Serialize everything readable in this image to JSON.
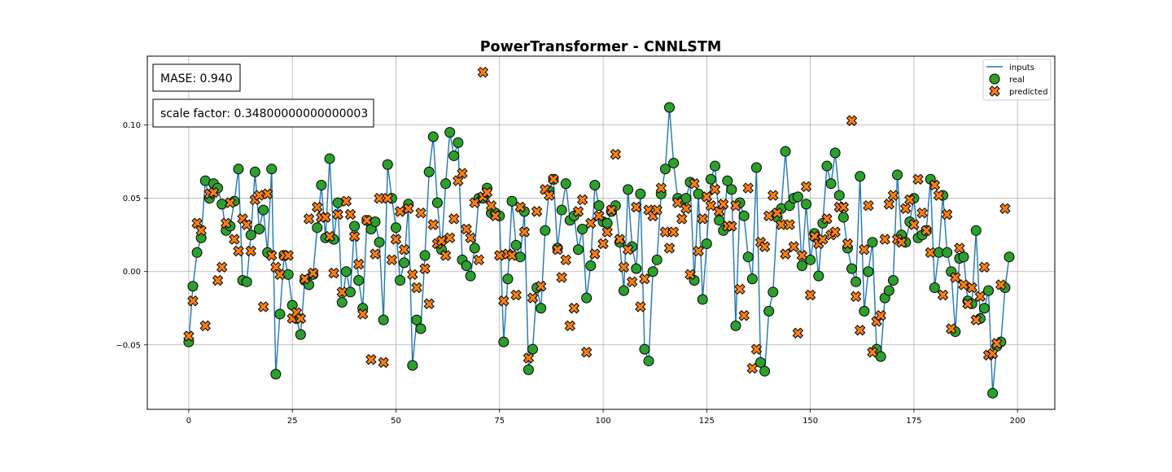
{
  "chart_data": {
    "type": "scatter",
    "title": "PowerTransformer - CNNLSTM",
    "xlabel": "",
    "ylabel": "",
    "xlim": [
      -10,
      209
    ],
    "ylim": [
      -0.094,
      0.147
    ],
    "grid": true,
    "legend_placement": "top-right",
    "x_ticks": [
      0,
      25,
      50,
      75,
      100,
      125,
      150,
      175,
      200
    ],
    "x_tick_labels": [
      "0",
      "25",
      "50",
      "75",
      "100",
      "125",
      "150",
      "175",
      "200"
    ],
    "y_ticks": [
      -0.05,
      0,
      0.05,
      0.1
    ],
    "y_tick_labels": [
      "−0.05",
      "0.00",
      "0.05",
      "0.10"
    ],
    "annotations": [
      "MASE: 0.940",
      "scale factor: 0.34800000000000003"
    ],
    "series": [
      {
        "name": "inputs",
        "kind": "line",
        "color": "#1f77b4",
        "values": [
          -0.048,
          -0.01,
          0.013,
          0.023,
          0.062,
          0.05,
          0.06,
          0.057,
          0.046,
          0.028,
          0.031,
          0.048,
          0.07,
          -0.006,
          -0.007,
          0.025,
          0.068,
          0.029,
          0.042,
          0.013,
          0.07,
          -0.07,
          -0.029,
          0.011,
          -0.002,
          -0.023,
          -0.032,
          -0.043,
          -0.006,
          -0.009,
          -0.002,
          0.03,
          0.059,
          0.023,
          0.077,
          0.022,
          0.047,
          -0.021,
          0.0,
          -0.014,
          0.031,
          -0.006,
          -0.025,
          0.035,
          0.029,
          0.034,
          0.02,
          -0.033,
          0.073,
          0.05,
          0.03,
          -0.006,
          0.006,
          0.046,
          -0.064,
          -0.033,
          -0.039,
          0.011,
          0.068,
          0.092,
          0.047,
          0.015,
          0.06,
          0.095,
          0.079,
          0.088,
          0.008,
          0.004,
          -0.003,
          0.016,
          0.05,
          0.05,
          0.057,
          0.04,
          0.04,
          0.038,
          -0.048,
          -0.005,
          0.048,
          0.018,
          0.01,
          0.041,
          -0.067,
          -0.053,
          -0.011,
          -0.025,
          0.028,
          0.055,
          0.063,
          0.016,
          0.042,
          0.06,
          0.035,
          0.038,
          0.015,
          0.029,
          -0.018,
          0.004,
          0.059,
          0.045,
          0.034,
          0.033,
          0.041,
          0.045,
          0.02,
          -0.013,
          0.056,
          0.017,
          0.002,
          0.053,
          -0.053,
          -0.061,
          0.0,
          0.008,
          0.053,
          0.07,
          0.112,
          0.074,
          0.05,
          0.048,
          0.05,
          0.061,
          -0.006,
          0.053,
          -0.019,
          0.019,
          0.063,
          0.072,
          0.035,
          0.028,
          0.062,
          0.056,
          -0.037,
          0.047,
          0.038,
          0.01,
          -0.005,
          0.071,
          -0.062,
          -0.068,
          -0.027,
          -0.014,
          0.037,
          0.043,
          0.082,
          0.045,
          0.05,
          0.051,
          0.004,
          0.046,
          0.008,
          0.026,
          -0.003,
          0.033,
          0.072,
          0.06,
          0.081,
          0.052,
          0.037,
          0.016,
          0.002,
          -0.007,
          0.065,
          -0.027,
          0.0,
          0.02,
          -0.053,
          -0.058,
          -0.018,
          -0.013,
          -0.006,
          0.066,
          0.025,
          0.02,
          0.034,
          0.05,
          0.023,
          0.025,
          0.028,
          0.063,
          -0.011,
          0.013,
          0.052,
          0.013,
          0.0,
          -0.041,
          0.009,
          0.01,
          -0.02,
          -0.022,
          0.028,
          -0.032,
          -0.025,
          -0.013,
          -0.083,
          -0.051,
          -0.048,
          -0.011,
          0.01
        ]
      },
      {
        "name": "real",
        "kind": "marker-circle",
        "color": "#2ca02c",
        "values": [
          -0.048,
          -0.01,
          0.013,
          0.023,
          0.062,
          0.05,
          0.06,
          0.057,
          0.046,
          0.028,
          0.031,
          0.048,
          0.07,
          -0.006,
          -0.007,
          0.025,
          0.068,
          0.029,
          0.042,
          0.013,
          0.07,
          -0.07,
          -0.029,
          0.011,
          -0.002,
          -0.023,
          -0.032,
          -0.043,
          -0.006,
          -0.009,
          -0.002,
          0.03,
          0.059,
          0.023,
          0.077,
          0.022,
          0.047,
          -0.021,
          0.0,
          -0.014,
          0.031,
          -0.006,
          -0.025,
          0.035,
          0.029,
          0.034,
          0.02,
          -0.033,
          0.073,
          0.05,
          0.03,
          -0.006,
          0.006,
          0.046,
          -0.064,
          -0.033,
          -0.039,
          0.011,
          0.068,
          0.092,
          0.047,
          0.015,
          0.06,
          0.095,
          0.079,
          0.088,
          0.008,
          0.004,
          -0.003,
          0.016,
          0.05,
          0.05,
          0.057,
          0.04,
          0.04,
          0.038,
          -0.048,
          -0.005,
          0.048,
          0.018,
          0.01,
          0.041,
          -0.067,
          -0.053,
          -0.011,
          -0.025,
          0.028,
          0.055,
          0.063,
          0.016,
          0.042,
          0.06,
          0.035,
          0.038,
          0.015,
          0.029,
          -0.018,
          0.004,
          0.059,
          0.045,
          0.034,
          0.033,
          0.041,
          0.045,
          0.02,
          -0.013,
          0.056,
          0.017,
          0.002,
          0.053,
          -0.053,
          -0.061,
          0.0,
          0.008,
          0.053,
          0.07,
          0.112,
          0.074,
          0.05,
          0.048,
          0.05,
          0.061,
          -0.006,
          0.053,
          -0.019,
          0.019,
          0.063,
          0.072,
          0.035,
          0.028,
          0.062,
          0.056,
          -0.037,
          0.047,
          0.038,
          0.01,
          -0.005,
          0.071,
          -0.062,
          -0.068,
          -0.027,
          -0.014,
          0.037,
          0.043,
          0.082,
          0.045,
          0.05,
          0.051,
          0.004,
          0.046,
          0.008,
          0.026,
          -0.003,
          0.033,
          0.072,
          0.06,
          0.081,
          0.052,
          0.037,
          0.016,
          0.002,
          -0.007,
          0.065,
          -0.027,
          0.0,
          0.02,
          -0.053,
          -0.058,
          -0.018,
          -0.013,
          -0.006,
          0.066,
          0.025,
          0.02,
          0.034,
          0.05,
          0.023,
          0.025,
          0.028,
          0.063,
          -0.011,
          0.013,
          0.052,
          0.013,
          0.0,
          -0.041,
          0.009,
          0.01,
          -0.02,
          -0.022,
          0.028,
          -0.032,
          -0.025,
          -0.013,
          -0.083,
          -0.051,
          -0.048,
          -0.011,
          0.01
        ]
      },
      {
        "name": "predicted",
        "kind": "marker-x",
        "color": "#ff7f0e",
        "values": [
          -0.044,
          -0.02,
          0.033,
          0.028,
          -0.037,
          0.053,
          0.054,
          -0.006,
          0.003,
          0.033,
          0.047,
          0.022,
          0.014,
          0.036,
          0.032,
          0.014,
          0.049,
          0.052,
          -0.024,
          0.053,
          0.011,
          0.003,
          -0.002,
          0.011,
          0.011,
          -0.032,
          -0.028,
          -0.032,
          -0.005,
          0.036,
          -0.001,
          0.044,
          0.037,
          0.037,
          0.024,
          -0.001,
          0.039,
          -0.014,
          0.048,
          0.039,
          0.024,
          0.005,
          -0.029,
          0.035,
          -0.06,
          0.012,
          0.05,
          -0.062,
          0.05,
          0.008,
          0.022,
          0.041,
          0.015,
          0.043,
          -0.002,
          -0.011,
          0.04,
          0.002,
          -0.022,
          0.032,
          0.019,
          0.021,
          0.011,
          0.023,
          0.036,
          0.062,
          0.067,
          0.029,
          0.023,
          0.047,
          0.008,
          0.051,
          0.054,
          0.045,
          0.038,
          0.011,
          -0.02,
          0.012,
          0.011,
          -0.016,
          0.044,
          0.027,
          -0.059,
          -0.018,
          0.041,
          -0.01,
          0.056,
          0.052,
          0.063,
          0.015,
          -0.004,
          0.008,
          -0.037,
          -0.025,
          0.041,
          0.049,
          -0.055,
          0.033,
          0.012,
          0.038,
          0.019,
          0.027,
          0.042,
          0.08,
          0.022,
          0.003,
          0.015,
          -0.007,
          0.044,
          -0.024,
          -0.005,
          0.042,
          0.038,
          0.042,
          0.057,
          0.027,
          0.016,
          0.027,
          0.047,
          0.036,
          0.043,
          -0.002,
          0.06,
          0.014,
          0.036,
          0.051,
          0.045,
          0.056,
          0.041,
          0.046,
          0.031,
          0.031,
          0.045,
          -0.012,
          -0.03,
          0.057,
          -0.066,
          -0.053,
          0.02,
          0.017,
          0.038,
          0.052,
          0.04,
          0.032,
          0.012,
          0.032,
          0.017,
          -0.042,
          0.011,
          0.058,
          -0.016,
          0.024,
          0.019,
          0.022,
          0.036,
          0.025,
          0.027,
          0.044,
          0.044,
          0.019,
          0.103,
          -0.017,
          -0.04,
          0.015,
          0.045,
          -0.055,
          -0.034,
          -0.03,
          0.022,
          0.046,
          0.052,
          0.022,
          0.02,
          0.043,
          0.049,
          0.032,
          0.063,
          0.04,
          0.028,
          0.013,
          0.059,
          0.052,
          -0.016,
          0.039,
          -0.039,
          -0.004,
          0.016,
          -0.009,
          -0.022,
          -0.011,
          -0.033,
          -0.017,
          0.003,
          -0.057,
          -0.056,
          -0.049,
          -0.009,
          0.043
        ]
      }
    ],
    "outlier_point": {
      "series": "predicted",
      "x": 71,
      "y": 0.136
    }
  }
}
